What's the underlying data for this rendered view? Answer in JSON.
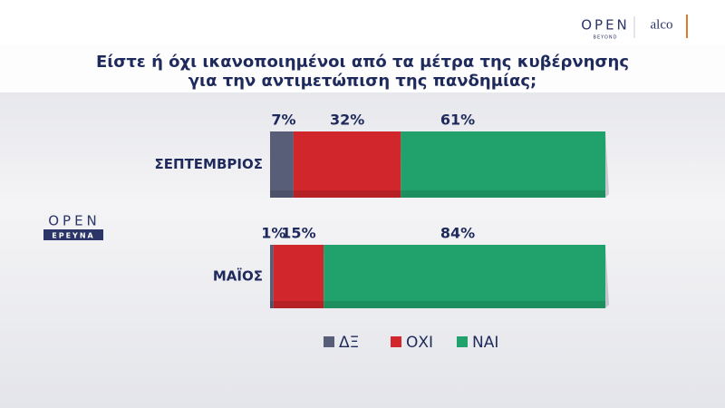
{
  "chart_data": {
    "type": "stacked-bar-horizontal",
    "title": [
      "Είστε ή όχι ικανοποιημένοι από τα μέτρα της κυβέρνησης",
      "για την αντιμετώπιση της πανδημίας;"
    ],
    "categories": [
      "ΣΕΠΤΕΜΒΡΙΟΣ",
      "ΜΑΪΟΣ"
    ],
    "xlim": [
      0,
      100
    ],
    "series": [
      {
        "name": "ΔΞ",
        "color": "#585d78",
        "values": [
          7,
          1
        ],
        "value_labels": [
          "7%",
          "1%"
        ]
      },
      {
        "name": "ΟΧΙ",
        "color": "#d0262c",
        "values": [
          32,
          15
        ],
        "value_labels": [
          "32%",
          "15%"
        ]
      },
      {
        "name": "ΝΑΙ",
        "color": "#21a26c",
        "values": [
          61,
          84
        ],
        "value_labels": [
          "61%",
          "84%"
        ]
      }
    ],
    "legend": "bottom"
  },
  "logos": {
    "open": "OPEN",
    "beyond": "BEYOND",
    "alco": "alco",
    "research": "ΕΡΕΥΝΑ"
  }
}
